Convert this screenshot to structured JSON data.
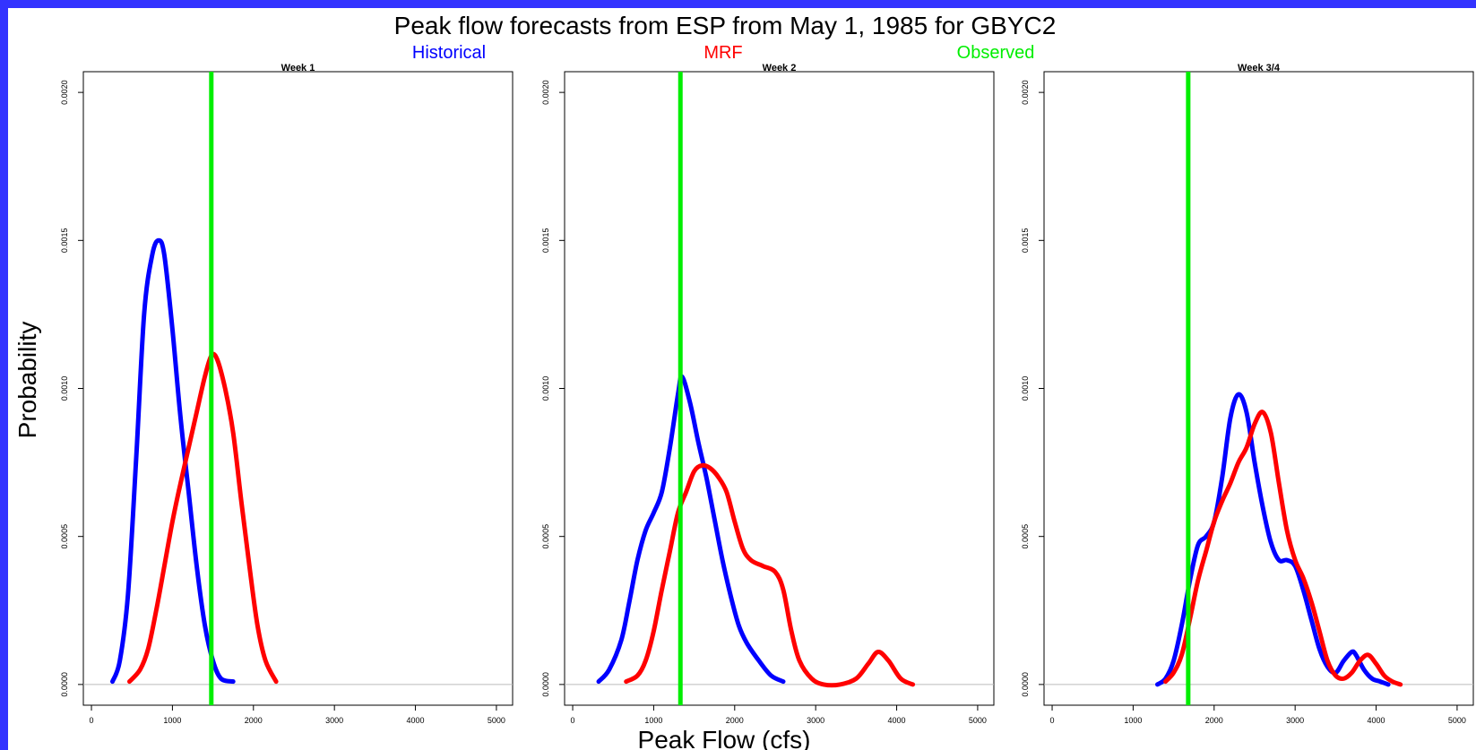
{
  "title": "Peak flow forecasts from ESP from May 1, 1985 for  GBYC2",
  "legend": [
    {
      "label": "Historical",
      "color": "#0000ff"
    },
    {
      "label": "MRF",
      "color": "#ff0000"
    },
    {
      "label": "Observed",
      "color": "#00ee00"
    }
  ],
  "xlabel": "Peak Flow (cfs)",
  "ylabel": "Probability",
  "chart_data": [
    {
      "type": "line",
      "title": "Week 1",
      "xlim": [
        -100,
        5200
      ],
      "ylim": [
        -7e-05,
        0.00207
      ],
      "xticks": [
        0,
        1000,
        2000,
        3000,
        4000,
        5000
      ],
      "yticks": [
        "0.0000",
        "0.0005",
        "0.0010",
        "0.0015",
        "0.0020"
      ],
      "observed": 1480,
      "series": [
        {
          "name": "Historical",
          "color": "#0000ff",
          "x": [
            260,
            350,
            450,
            550,
            650,
            750,
            830,
            900,
            1000,
            1100,
            1200,
            1300,
            1400,
            1500,
            1600,
            1750
          ],
          "y": [
            1e-05,
            8e-05,
            0.0003,
            0.00075,
            0.00125,
            0.00145,
            0.0015,
            0.00145,
            0.0012,
            0.0009,
            0.00065,
            0.0004,
            0.0002,
            8e-05,
            2e-05,
            1e-05
          ]
        },
        {
          "name": "MRF",
          "color": "#ff0000",
          "x": [
            470,
            600,
            700,
            800,
            900,
            1000,
            1100,
            1200,
            1300,
            1400,
            1480,
            1550,
            1650,
            1750,
            1850,
            1950,
            2050,
            2150,
            2280
          ],
          "y": [
            1e-05,
            5e-05,
            0.00012,
            0.00025,
            0.0004,
            0.00055,
            0.00068,
            0.0008,
            0.00092,
            0.00104,
            0.00111,
            0.0011,
            0.001,
            0.00085,
            0.00062,
            0.0004,
            0.0002,
            8e-05,
            1e-05
          ]
        }
      ]
    },
    {
      "type": "line",
      "title": "Week 2",
      "xlim": [
        -100,
        5200
      ],
      "ylim": [
        -7e-05,
        0.00207
      ],
      "xticks": [
        0,
        1000,
        2000,
        3000,
        4000,
        5000
      ],
      "yticks": [
        "0.0000",
        "0.0005",
        "0.0010",
        "0.0015",
        "0.0020"
      ],
      "observed": 1330,
      "series": [
        {
          "name": "Historical",
          "color": "#0000ff",
          "x": [
            320,
            450,
            600,
            700,
            800,
            900,
            1000,
            1100,
            1200,
            1300,
            1350,
            1450,
            1550,
            1650,
            1750,
            1850,
            1950,
            2050,
            2150,
            2300,
            2450,
            2600
          ],
          "y": [
            1e-05,
            5e-05,
            0.00015,
            0.00028,
            0.00042,
            0.00052,
            0.00058,
            0.00065,
            0.0008,
            0.00098,
            0.00104,
            0.00095,
            0.00082,
            0.0007,
            0.00056,
            0.00042,
            0.0003,
            0.0002,
            0.00014,
            8e-05,
            3e-05,
            1e-05
          ]
        },
        {
          "name": "MRF",
          "color": "#ff0000",
          "x": [
            660,
            800,
            900,
            1000,
            1100,
            1200,
            1300,
            1400,
            1500,
            1600,
            1700,
            1800,
            1900,
            2000,
            2100,
            2200,
            2350,
            2500,
            2600,
            2700,
            2800,
            2950,
            3100,
            3300,
            3500,
            3650,
            3770,
            3900,
            4050,
            4200
          ],
          "y": [
            1e-05,
            3e-05,
            8e-05,
            0.00018,
            0.00032,
            0.00045,
            0.00058,
            0.00065,
            0.00072,
            0.00074,
            0.00073,
            0.0007,
            0.00065,
            0.00055,
            0.00046,
            0.00042,
            0.0004,
            0.00038,
            0.00032,
            0.00018,
            8e-05,
            2e-05,
            0.0,
            0.0,
            2e-05,
            7e-05,
            0.00011,
            8e-05,
            2e-05,
            0.0
          ]
        }
      ]
    },
    {
      "type": "line",
      "title": "Week 3/4",
      "xlim": [
        -100,
        5200
      ],
      "ylim": [
        -7e-05,
        0.00207
      ],
      "xticks": [
        0,
        1000,
        2000,
        3000,
        4000,
        5000
      ],
      "yticks": [
        "0.0000",
        "0.0005",
        "0.0010",
        "0.0015",
        "0.0020"
      ],
      "observed": 1680,
      "series": [
        {
          "name": "Historical",
          "color": "#0000ff",
          "x": [
            1300,
            1400,
            1500,
            1600,
            1700,
            1800,
            1900,
            2000,
            2100,
            2200,
            2300,
            2400,
            2500,
            2600,
            2700,
            2800,
            2900,
            3000,
            3100,
            3200,
            3300,
            3400,
            3500,
            3600,
            3700,
            3750,
            3850,
            3950,
            4050,
            4150
          ],
          "y": [
            0.0,
            2e-05,
            8e-05,
            0.0002,
            0.00035,
            0.00047,
            0.0005,
            0.00055,
            0.0007,
            0.0009,
            0.00098,
            0.00092,
            0.00075,
            0.0006,
            0.00048,
            0.00042,
            0.00042,
            0.0004,
            0.00032,
            0.00022,
            0.00012,
            6e-05,
            4e-05,
            8e-05,
            0.00011,
            0.0001,
            5e-05,
            2e-05,
            1e-05,
            0.0
          ]
        },
        {
          "name": "MRF",
          "color": "#ff0000",
          "x": [
            1400,
            1500,
            1600,
            1700,
            1800,
            1900,
            2000,
            2100,
            2200,
            2300,
            2400,
            2500,
            2600,
            2700,
            2800,
            2900,
            3000,
            3100,
            3200,
            3300,
            3400,
            3500,
            3600,
            3700,
            3800,
            3900,
            4000,
            4100,
            4200,
            4300
          ],
          "y": [
            1e-05,
            4e-05,
            0.0001,
            0.00022,
            0.00035,
            0.00045,
            0.00055,
            0.00062,
            0.00068,
            0.00075,
            0.0008,
            0.00088,
            0.00092,
            0.00085,
            0.00068,
            0.00052,
            0.00042,
            0.00036,
            0.00028,
            0.00018,
            8e-05,
            3e-05,
            2e-05,
            4e-05,
            8e-05,
            0.0001,
            7e-05,
            3e-05,
            1e-05,
            0.0
          ]
        }
      ]
    }
  ]
}
